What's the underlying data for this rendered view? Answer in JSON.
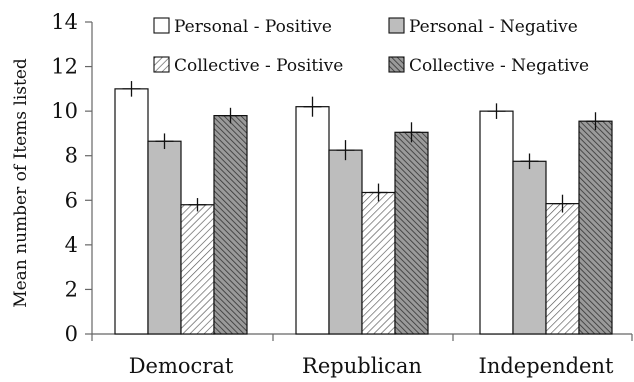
{
  "chart_data": {
    "type": "bar",
    "title": "",
    "xlabel": "",
    "ylabel": "Mean number of Items listed",
    "ylim": [
      0,
      14
    ],
    "yticks": [
      0,
      2,
      4,
      6,
      8,
      10,
      12,
      14
    ],
    "grid": false,
    "legend_position": "top",
    "categories": [
      "Democrat",
      "Republican",
      "Independent"
    ],
    "series": [
      {
        "name": "Personal - Positive",
        "values": [
          11.0,
          10.2,
          10.0
        ],
        "errors": [
          0.35,
          0.45,
          0.35
        ],
        "fill": "#ffffff",
        "pattern": "none"
      },
      {
        "name": "Personal - Negative",
        "values": [
          8.65,
          8.25,
          7.75
        ],
        "errors": [
          0.35,
          0.45,
          0.35
        ],
        "fill": "#bdbdbd",
        "pattern": "none"
      },
      {
        "name": "Collective - Positive",
        "values": [
          5.8,
          6.35,
          5.85
        ],
        "errors": [
          0.3,
          0.4,
          0.4
        ],
        "fill": "#ffffff",
        "pattern": "light-diagonal"
      },
      {
        "name": "Collective - Negative",
        "values": [
          9.8,
          9.05,
          9.55
        ],
        "errors": [
          0.35,
          0.45,
          0.4
        ],
        "fill": "#9a9a9a",
        "pattern": "dark-diagonal"
      }
    ]
  }
}
